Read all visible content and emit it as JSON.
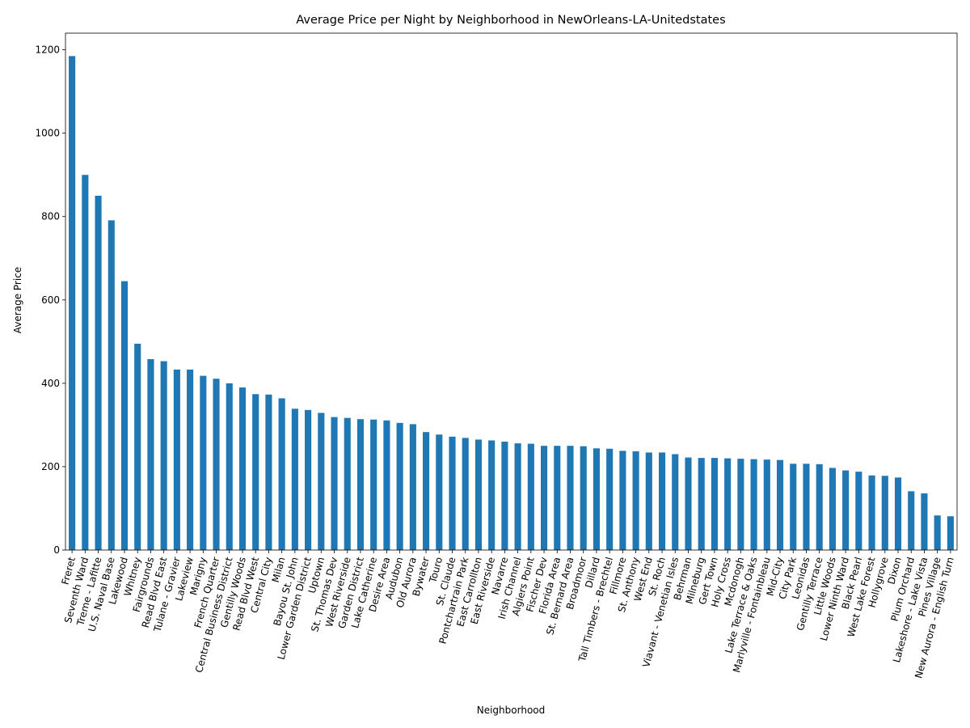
{
  "chart_data": {
    "type": "bar",
    "title": "Average Price per Night by Neighborhood in NewOrleans-LA-Unitedstates",
    "xlabel": "Neighborhood",
    "ylabel": "Average Price",
    "ylim": [
      0,
      1240
    ],
    "yticks": [
      0,
      200,
      400,
      600,
      800,
      1000,
      1200
    ],
    "grid": false,
    "bar_color": "#1f77b4",
    "categories": [
      "Freret",
      "Seventh Ward",
      "Treme - Lafitte",
      "U.S. Naval Base",
      "Lakewood",
      "Whitney",
      "Fairgrounds",
      "Read Blvd East",
      "Tulane - Gravier",
      "Lakeview",
      "Marigny",
      "French Quarter",
      "Central Business District",
      "Gentilly Woods",
      "Read Blvd West",
      "Central City",
      "Milan",
      "Bayou St. John",
      "Lower Garden District",
      "Uptown",
      "St. Thomas Dev",
      "West Riverside",
      "Garden District",
      "Lake Catherine",
      "Desire Area",
      "Audubon",
      "Old Aurora",
      "Bywater",
      "Touro",
      "St. Claude",
      "Pontchartrain Park",
      "East Carrollton",
      "East Riverside",
      "Navarre",
      "Irish Channel",
      "Algiers Point",
      "Fischer Dev",
      "Florida Area",
      "St. Bernard Area",
      "Broadmoor",
      "Dillard",
      "Tall Timbers - Brechtel",
      "Fillmore",
      "St. Anthony",
      "West End",
      "St. Roch",
      "Viavant - Venetian Isles",
      "Behrman",
      "Milneburg",
      "Gert Town",
      "Holy Cross",
      "Mcdonogh",
      "Lake Terrace & Oaks",
      "Marlyville - Fontainbleau",
      "Mid-City",
      "City Park",
      "Leonidas",
      "Gentilly Terrace",
      "Little Woods",
      "Lower Ninth Ward",
      "Black Pearl",
      "West Lake Forest",
      "Hollygrove",
      "Dixon",
      "Plum Orchard",
      "Lakeshore - Lake Vista",
      "Pines Village",
      "New Aurora - English Turn"
    ],
    "values": [
      1185,
      900,
      850,
      791,
      645,
      495,
      458,
      453,
      433,
      433,
      418,
      411,
      400,
      390,
      374,
      373,
      364,
      339,
      336,
      329,
      319,
      317,
      314,
      313,
      311,
      305,
      302,
      283,
      277,
      272,
      269,
      265,
      263,
      260,
      256,
      255,
      250,
      250,
      250,
      249,
      244,
      243,
      238,
      237,
      234,
      234,
      230,
      222,
      221,
      221,
      220,
      219,
      218,
      217,
      216,
      207,
      207,
      206,
      197,
      191,
      188,
      179,
      178,
      174,
      141,
      136,
      83,
      81
    ]
  }
}
